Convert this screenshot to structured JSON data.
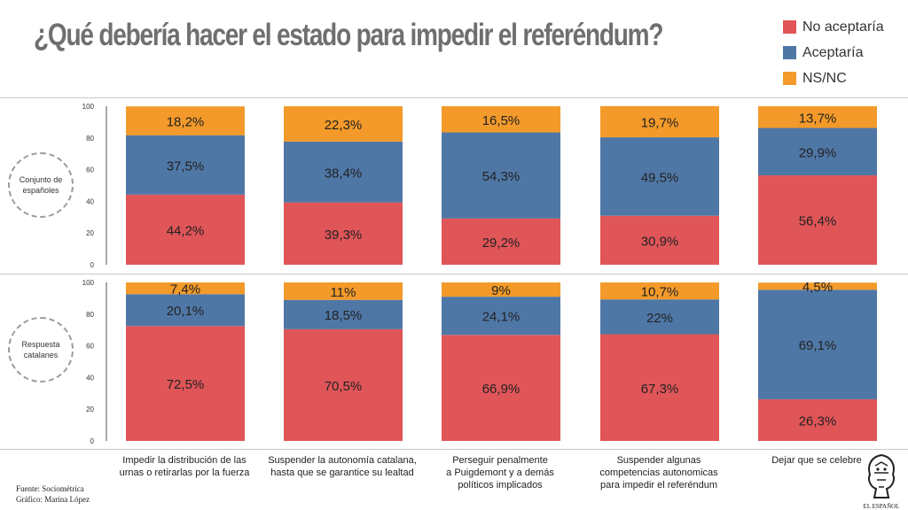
{
  "title": "¿Qué debería hacer el estado para impedir el referéndum?",
  "legend": [
    {
      "label": "No aceptaría",
      "color": "#e05558"
    },
    {
      "label": "Aceptaría",
      "color": "#4f77a6"
    },
    {
      "label": "NS/NC",
      "color": "#f39a2a"
    }
  ],
  "group_labels": {
    "espanoles": "Conjunto de\nespañoles",
    "catalanes": "Respuesta\ncatalanes"
  },
  "categories": [
    "Impedir la distribución de las\nurnas o retirarlas por la fuerza",
    "Suspender la autonomía catalana,\nhasta que se garantice su lealtad",
    "Perseguir penalmente\na Puigdemont y a demás\npolíticos implicados",
    "Suspender algunas\ncompetencias autonomicas\npara impedir el referéndum",
    "Dejar que se celebre"
  ],
  "footer": {
    "source": "Fuente: Sociométrica",
    "graphic": "Gráfico: Marina López"
  },
  "logo_text": "EL ESPAÑOL",
  "chart_data": [
    {
      "type": "bar",
      "stacked": true,
      "panel": "Conjunto de españoles",
      "ylim": [
        0,
        100
      ],
      "yticks": [
        "0",
        "20",
        "40",
        "60",
        "80",
        "100"
      ],
      "series": [
        {
          "name": "No aceptaría",
          "values": [
            44.2,
            39.3,
            29.2,
            30.9,
            56.4
          ],
          "labels": [
            "44,2%",
            "39,3%",
            "29,2%",
            "30,9%",
            "56,4%"
          ]
        },
        {
          "name": "Aceptaría",
          "values": [
            37.5,
            38.4,
            54.3,
            49.5,
            29.9
          ],
          "labels": [
            "37,5%",
            "38,4%",
            "54,3%",
            "49,5%",
            "29,9%"
          ]
        },
        {
          "name": "NS/NC",
          "values": [
            18.2,
            22.3,
            16.5,
            19.7,
            13.7
          ],
          "labels": [
            "18,2%",
            "22,3%",
            "16,5%",
            "19,7%",
            "13,7%"
          ]
        }
      ]
    },
    {
      "type": "bar",
      "stacked": true,
      "panel": "Respuesta catalanes",
      "ylim": [
        0,
        100
      ],
      "yticks": [
        "0",
        "20",
        "40",
        "60",
        "80",
        "100"
      ],
      "series": [
        {
          "name": "No aceptaría",
          "values": [
            72.5,
            70.5,
            66.9,
            67.3,
            26.3
          ],
          "labels": [
            "72,5%",
            "70,5%",
            "66,9%",
            "67,3%",
            "26,3%"
          ]
        },
        {
          "name": "Aceptaría",
          "values": [
            20.1,
            18.5,
            24.1,
            22.0,
            69.1
          ],
          "labels": [
            "20,1%",
            "18,5%",
            "24,1%",
            "22%",
            "69,1%"
          ]
        },
        {
          "name": "NS/NC",
          "values": [
            7.4,
            11.0,
            9.0,
            10.7,
            4.5
          ],
          "labels": [
            "7,4%",
            "11%",
            "9%",
            "10,7%",
            "4,5%"
          ]
        }
      ]
    }
  ]
}
